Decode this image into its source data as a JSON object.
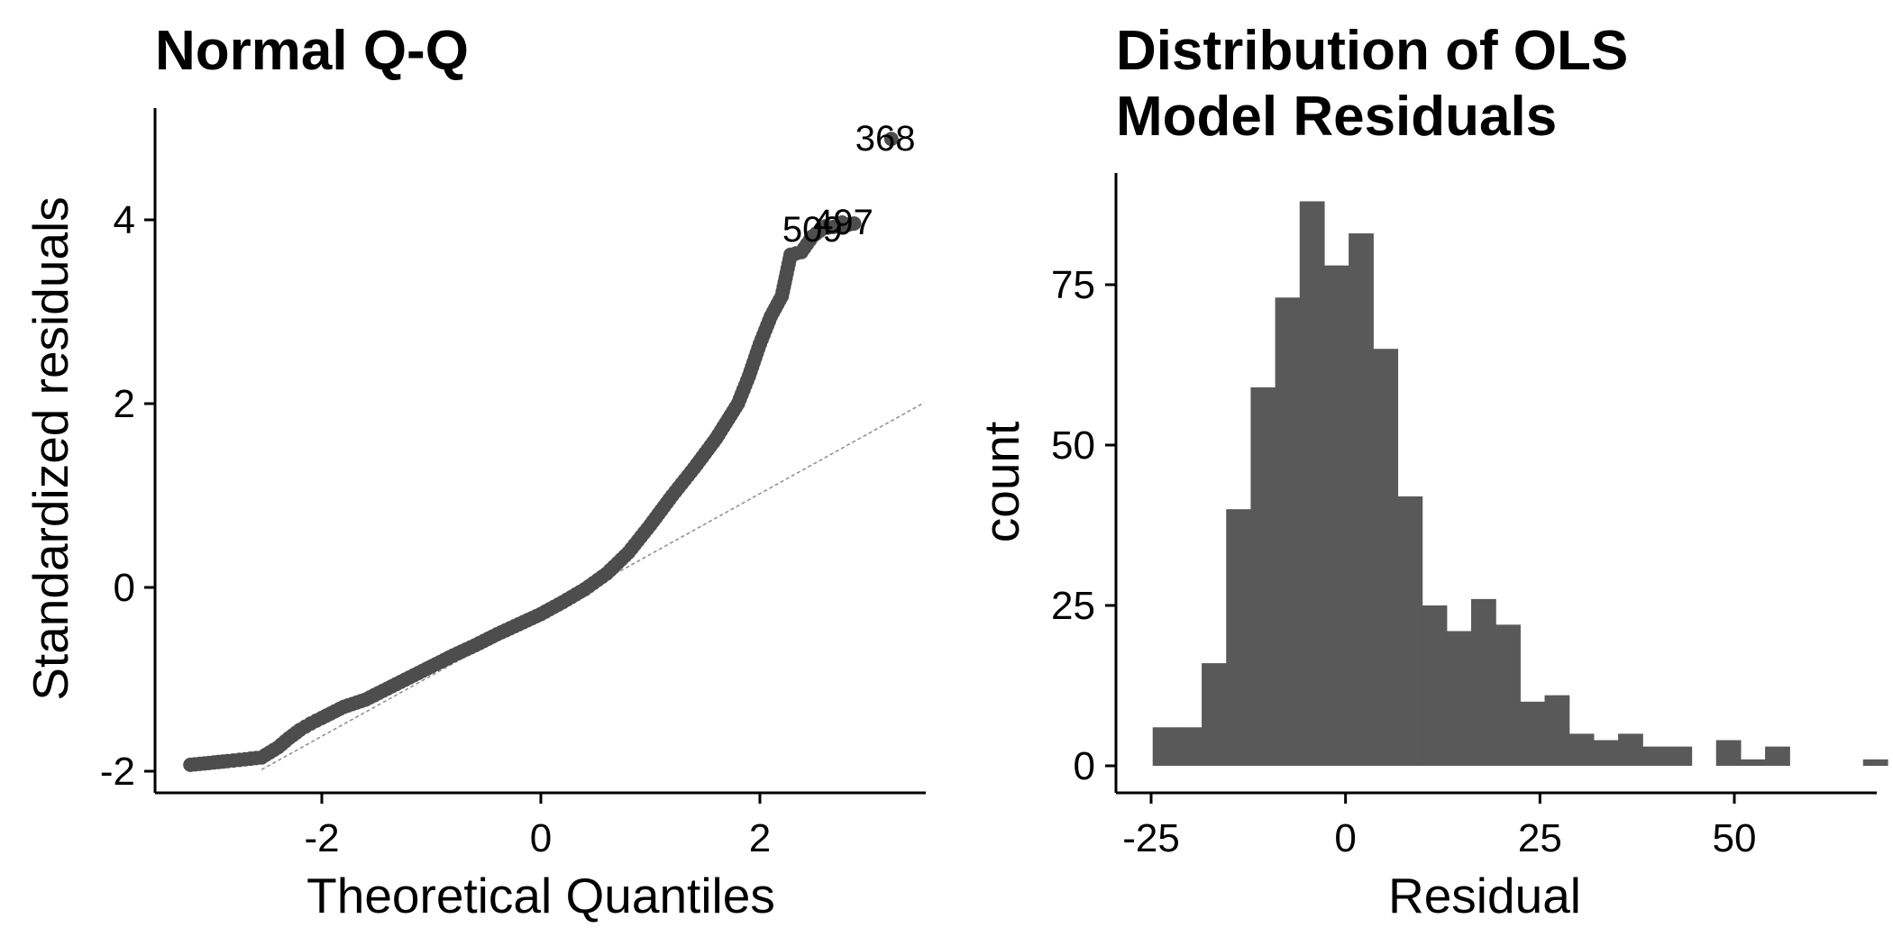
{
  "chart_data": [
    {
      "type": "scatter",
      "title": "Normal Q-Q",
      "xlabel": "Theoretical Quantiles",
      "ylabel": "Standardized residuals",
      "xlim": [
        -3.5,
        3.5
      ],
      "ylim": [
        -2.3,
        5.2
      ],
      "x_ticks": [
        -2,
        0,
        2
      ],
      "y_ticks": [
        -2,
        0,
        2,
        4
      ],
      "x_tick_labels": [
        "-2",
        "0",
        "2"
      ],
      "y_tick_labels": [
        "-2",
        "0",
        "2",
        "4"
      ],
      "grid": false,
      "point_color": "#4d4d4d",
      "reference_line": {
        "slope": 0.66,
        "intercept": -0.3,
        "style": "dashed",
        "color": "#8c8c8c"
      },
      "quantile_curve": [
        [
          -3.2,
          -1.93
        ],
        [
          -2.86,
          -1.89
        ],
        [
          -2.7,
          -1.87
        ],
        [
          -2.55,
          -1.85
        ],
        [
          -2.4,
          -1.74
        ],
        [
          -2.3,
          -1.64
        ],
        [
          -2.2,
          -1.55
        ],
        [
          -2.1,
          -1.48
        ],
        [
          -2.0,
          -1.42
        ],
        [
          -1.8,
          -1.3
        ],
        [
          -1.6,
          -1.22
        ],
        [
          -1.4,
          -1.1
        ],
        [
          -1.2,
          -0.98
        ],
        [
          -1.0,
          -0.86
        ],
        [
          -0.8,
          -0.74
        ],
        [
          -0.6,
          -0.63
        ],
        [
          -0.4,
          -0.51
        ],
        [
          -0.2,
          -0.4
        ],
        [
          0.0,
          -0.29
        ],
        [
          0.2,
          -0.16
        ],
        [
          0.4,
          -0.02
        ],
        [
          0.6,
          0.15
        ],
        [
          0.8,
          0.38
        ],
        [
          1.0,
          0.68
        ],
        [
          1.2,
          1.0
        ],
        [
          1.4,
          1.3
        ],
        [
          1.6,
          1.62
        ],
        [
          1.8,
          2.0
        ],
        [
          1.9,
          2.3
        ],
        [
          2.0,
          2.65
        ],
        [
          2.1,
          2.95
        ],
        [
          2.2,
          3.17
        ],
        [
          2.28,
          3.62
        ],
        [
          2.38,
          3.65
        ],
        [
          2.48,
          3.82
        ],
        [
          2.58,
          3.91
        ],
        [
          2.72,
          3.93
        ],
        [
          2.86,
          3.96
        ]
      ],
      "outlier_points": [
        {
          "x": 3.2,
          "y": 4.88,
          "label": "368"
        },
        {
          "x": 2.75,
          "y": 3.97,
          "label": "497"
        },
        {
          "x": 2.6,
          "y": 3.93,
          "label": "509"
        }
      ]
    },
    {
      "type": "bar",
      "subtype": "histogram",
      "title_lines": [
        "Distribution of OLS",
        "Model Residuals"
      ],
      "xlabel": "Residual",
      "ylabel": "count",
      "xlim": [
        -29.5,
        67.5
      ],
      "ylim": [
        -4,
        92
      ],
      "x_ticks": [
        -25,
        0,
        25,
        50
      ],
      "y_ticks": [
        0,
        25,
        50,
        75
      ],
      "x_tick_labels": [
        "-25",
        "0",
        "25",
        "50"
      ],
      "y_tick_labels": [
        "0",
        "25",
        "50",
        "75"
      ],
      "grid": false,
      "bar_color": "#595959",
      "bin_start": -24.8,
      "bin_width": 3.15,
      "counts": [
        6,
        6,
        16,
        40,
        59,
        73,
        88,
        78,
        83,
        65,
        42,
        25,
        21,
        26,
        22,
        10,
        11,
        5,
        4,
        5,
        3,
        3,
        0,
        4,
        1,
        3,
        0,
        0,
        0,
        1
      ]
    }
  ]
}
